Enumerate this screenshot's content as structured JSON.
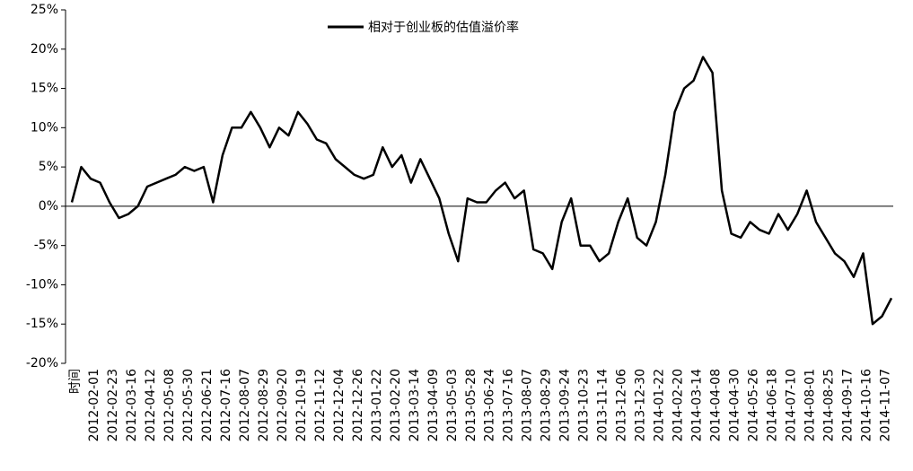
{
  "chart_data": {
    "type": "line",
    "legend_label": "相对于创业板的估值溢价率",
    "x_label": "时间",
    "categories": [
      null,
      null,
      "2012-02-01",
      null,
      "2012-02-23",
      null,
      "2012-03-16",
      null,
      "2012-04-12",
      null,
      "2012-05-08",
      null,
      "2012-05-30",
      null,
      "2012-06-21",
      null,
      "2012-07-16",
      null,
      "2012-08-07",
      null,
      "2012-08-29",
      null,
      "2012-09-20",
      null,
      "2012-10-19",
      null,
      "2012-11-12",
      null,
      "2012-12-04",
      null,
      "2012-12-26",
      null,
      "2013-01-22",
      null,
      "2013-02-20",
      null,
      "2013-03-14",
      null,
      "2013-04-09",
      null,
      "2013-05-03",
      null,
      "2013-05-28",
      null,
      "2013-06-24",
      null,
      "2013-07-16",
      null,
      "2013-08-07",
      null,
      "2013-08-29",
      null,
      "2013-09-24",
      null,
      "2013-10-23",
      null,
      "2013-11-14",
      null,
      "2013-12-06",
      null,
      "2013-12-30",
      null,
      "2014-01-22",
      null,
      "2014-02-20",
      null,
      "2014-03-14",
      null,
      "2014-04-08",
      null,
      "2014-04-30",
      null,
      "2014-05-26",
      null,
      "2014-06-18",
      null,
      "2014-07-10",
      null,
      "2014-08-01",
      null,
      "2014-08-25",
      null,
      "2014-09-17",
      null,
      "2014-10-16",
      null,
      "2014-11-07",
      null
    ],
    "values": [
      0.5,
      5,
      3.5,
      3,
      0.5,
      -1.5,
      -1,
      0,
      2.5,
      3,
      3.5,
      4,
      5,
      4.5,
      5,
      0.5,
      6.5,
      10,
      10,
      12,
      10,
      7.5,
      10,
      9,
      12,
      10.5,
      8.5,
      8,
      6,
      5,
      4,
      3.5,
      4,
      7.5,
      5,
      6.5,
      3,
      6,
      3.5,
      1,
      -3.5,
      -7,
      1,
      0.5,
      0.5,
      2,
      3,
      1,
      2,
      -5.5,
      -6,
      -8,
      -2,
      1,
      -5,
      -5,
      -7,
      -6,
      -2,
      1,
      -4,
      -5,
      -2,
      4,
      12,
      15,
      16,
      19,
      17,
      2,
      -3.5,
      -4,
      -2,
      -3,
      -3.5,
      -1,
      -3,
      -1,
      2,
      -2,
      -4,
      -6,
      -7,
      -9,
      -6,
      -15,
      -14,
      -11.7
    ],
    "color": "#000000",
    "ylim": [
      -20,
      25
    ],
    "yticks": [
      {
        "value": -20,
        "label": "-20%"
      },
      {
        "value": -15,
        "label": "-15%"
      },
      {
        "value": -10,
        "label": "-10%"
      },
      {
        "value": -5,
        "label": "-5%"
      },
      {
        "value": 0,
        "label": "0%"
      },
      {
        "value": 5,
        "label": "5%"
      },
      {
        "value": 10,
        "label": "10%"
      },
      {
        "value": 15,
        "label": "15%"
      },
      {
        "value": 20,
        "label": "20%"
      },
      {
        "value": 25,
        "label": "25%"
      }
    ]
  }
}
